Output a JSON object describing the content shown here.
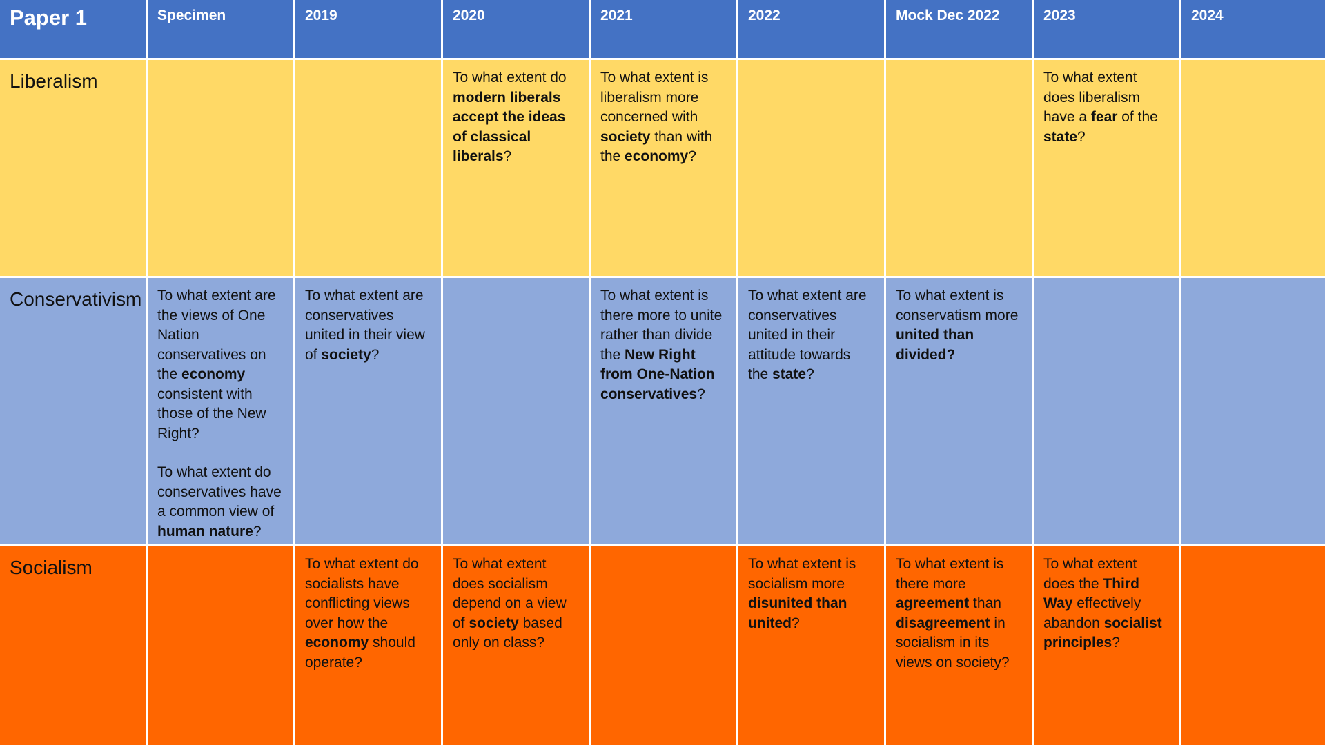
{
  "table": {
    "title": "Paper 1",
    "columns": [
      "Specimen",
      "2019",
      "2020",
      "2021",
      "2022",
      "Mock Dec 2022",
      "2023",
      "2024"
    ],
    "colors": {
      "header": "#4472C4",
      "liberalism": "#FFD966",
      "conservatism": "#8EA9DB",
      "socialism": "#FF6600",
      "grid_lines": "#FFFFFF"
    },
    "rows": [
      {
        "label": "Liberalism",
        "cells": [
          {
            "paragraphs": []
          },
          {
            "paragraphs": []
          },
          {
            "paragraphs": [
              [
                {
                  "t": "To what extent do "
                },
                {
                  "t": "modern liberals accept the ideas of classical liberals",
                  "b": true
                },
                {
                  "t": "?"
                }
              ]
            ]
          },
          {
            "paragraphs": [
              [
                {
                  "t": "To what extent is liberalism more concerned with "
                },
                {
                  "t": "society",
                  "b": true
                },
                {
                  "t": " than with the "
                },
                {
                  "t": "economy",
                  "b": true
                },
                {
                  "t": "?"
                }
              ]
            ]
          },
          {
            "paragraphs": []
          },
          {
            "paragraphs": []
          },
          {
            "paragraphs": [
              [
                {
                  "t": "To what extent does liberalism have a "
                },
                {
                  "t": "fear",
                  "b": true
                },
                {
                  "t": " of the "
                },
                {
                  "t": "state",
                  "b": true
                },
                {
                  "t": "?"
                }
              ]
            ]
          },
          {
            "paragraphs": []
          }
        ]
      },
      {
        "label": "Conservativism",
        "cells": [
          {
            "paragraphs": [
              [
                {
                  "t": "To what extent are the views of One Nation conservatives on the "
                },
                {
                  "t": "economy",
                  "b": true
                },
                {
                  "t": " consistent with those of the New Right?"
                }
              ],
              [
                {
                  "t": "To what extent do conservatives have a common view of "
                },
                {
                  "t": "human nature",
                  "b": true
                },
                {
                  "t": "?"
                }
              ]
            ]
          },
          {
            "paragraphs": [
              [
                {
                  "t": "To what extent are conservatives united in their view of "
                },
                {
                  "t": "society",
                  "b": true
                },
                {
                  "t": "?"
                }
              ]
            ]
          },
          {
            "paragraphs": []
          },
          {
            "paragraphs": [
              [
                {
                  "t": "To what extent is there more to unite rather than divide the "
                },
                {
                  "t": "New Right from One-Nation conservatives",
                  "b": true
                },
                {
                  "t": "?"
                }
              ]
            ]
          },
          {
            "paragraphs": [
              [
                {
                  "t": "To what extent are conservatives united in their attitude towards the "
                },
                {
                  "t": "state",
                  "b": true
                },
                {
                  "t": "?"
                }
              ]
            ]
          },
          {
            "paragraphs": [
              [
                {
                  "t": "To what extent is conservatism more "
                },
                {
                  "t": "united than divided?",
                  "b": true
                }
              ]
            ]
          },
          {
            "paragraphs": []
          },
          {
            "paragraphs": []
          }
        ]
      },
      {
        "label": "Socialism",
        "cells": [
          {
            "paragraphs": []
          },
          {
            "paragraphs": [
              [
                {
                  "t": "To what extent do socialists have conflicting views over how the "
                },
                {
                  "t": "economy",
                  "b": true
                },
                {
                  "t": " should operate?"
                }
              ]
            ]
          },
          {
            "paragraphs": [
              [
                {
                  "t": "To what extent does socialism depend on a view of "
                },
                {
                  "t": "society",
                  "b": true
                },
                {
                  "t": " based only on class?"
                }
              ]
            ]
          },
          {
            "paragraphs": []
          },
          {
            "paragraphs": [
              [
                {
                  "t": "To what extent is socialism more "
                },
                {
                  "t": "disunited than united",
                  "b": true
                },
                {
                  "t": "?"
                }
              ]
            ]
          },
          {
            "paragraphs": [
              [
                {
                  "t": "To what extent is there more "
                },
                {
                  "t": "agreement",
                  "b": true
                },
                {
                  "t": " than "
                },
                {
                  "t": "disagreement",
                  "b": true
                },
                {
                  "t": " in socialism in its views on society?"
                }
              ]
            ]
          },
          {
            "paragraphs": [
              [
                {
                  "t": "To what extent does the "
                },
                {
                  "t": "Third Way",
                  "b": true
                },
                {
                  "t": " effectively abandon "
                },
                {
                  "t": "socialist principles",
                  "b": true
                },
                {
                  "t": "?"
                }
              ]
            ]
          },
          {
            "paragraphs": []
          }
        ]
      }
    ]
  }
}
